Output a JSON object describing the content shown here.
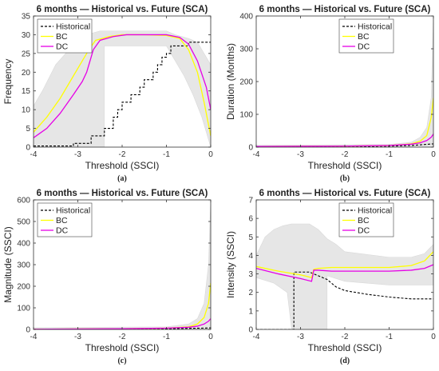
{
  "colors": {
    "historical": "#000000",
    "bc": "#ffff00",
    "dc": "#e600e6",
    "band": "#e6e6e6",
    "axis": "#333333"
  },
  "chart_data": [
    {
      "type": "line",
      "panel_label": "(a)",
      "title": "6 months — Historical vs. Future (SCA)",
      "xlabel": "Threshold (SSCI)",
      "ylabel": "Frequency",
      "xlim": [
        -4,
        0
      ],
      "ylim": [
        0,
        35
      ],
      "xticks": [
        -4,
        -3,
        -2,
        -1,
        0
      ],
      "yticks": [
        0,
        5,
        10,
        15,
        20,
        25,
        30,
        35
      ],
      "legend": {
        "position": "top-left",
        "entries": [
          "Historical",
          "BC",
          "DC"
        ]
      },
      "series": [
        {
          "name": "Historical",
          "style": "dashed",
          "step": true,
          "points": [
            [
              -4,
              0.3
            ],
            [
              -3.3,
              0.3
            ],
            [
              -3.1,
              1.0
            ],
            [
              -2.8,
              1.0
            ],
            [
              -2.7,
              3
            ],
            [
              -2.5,
              3
            ],
            [
              -2.4,
              5
            ],
            [
              -2.3,
              5
            ],
            [
              -2.2,
              8
            ],
            [
              -2.1,
              10
            ],
            [
              -2.0,
              12
            ],
            [
              -1.8,
              14
            ],
            [
              -1.6,
              16
            ],
            [
              -1.5,
              18
            ],
            [
              -1.3,
              20
            ],
            [
              -1.2,
              22
            ],
            [
              -1.1,
              24
            ],
            [
              -1.0,
              25
            ],
            [
              -0.9,
              27
            ],
            [
              -0.6,
              27
            ],
            [
              -0.5,
              28
            ],
            [
              0,
              28
            ]
          ]
        },
        {
          "name": "BC",
          "points": [
            [
              -4,
              4
            ],
            [
              -3.7,
              8
            ],
            [
              -3.4,
              13
            ],
            [
              -3.1,
              19
            ],
            [
              -2.9,
              23
            ],
            [
              -2.75,
              26
            ],
            [
              -2.6,
              28.5
            ],
            [
              -2.3,
              29.5
            ],
            [
              -2.0,
              30
            ],
            [
              -1.5,
              30
            ],
            [
              -1.0,
              29.8
            ],
            [
              -0.7,
              29
            ],
            [
              -0.5,
              26
            ],
            [
              -0.3,
              20
            ],
            [
              -0.15,
              12
            ],
            [
              0,
              3
            ]
          ]
        },
        {
          "name": "DC",
          "points": [
            [
              -4,
              2.5
            ],
            [
              -3.7,
              5
            ],
            [
              -3.4,
              9
            ],
            [
              -3.1,
              14
            ],
            [
              -2.9,
              17.5
            ],
            [
              -2.8,
              20
            ],
            [
              -2.65,
              26
            ],
            [
              -2.5,
              28.5
            ],
            [
              -2.2,
              29.5
            ],
            [
              -1.9,
              30
            ],
            [
              -1.5,
              30
            ],
            [
              -1.0,
              30
            ],
            [
              -0.7,
              29.3
            ],
            [
              -0.5,
              27.5
            ],
            [
              -0.3,
              23
            ],
            [
              -0.1,
              16
            ],
            [
              0,
              10
            ]
          ]
        }
      ],
      "band": {
        "upper": [
          [
            -4,
            11
          ],
          [
            -3.8,
            15
          ],
          [
            -3.5,
            22
          ],
          [
            -3.2,
            26
          ],
          [
            -3.0,
            28
          ],
          [
            -2.8,
            30
          ],
          [
            -2.5,
            31
          ],
          [
            -2.0,
            31
          ],
          [
            -1.0,
            31
          ],
          [
            -0.8,
            30
          ],
          [
            -0.5,
            29
          ],
          [
            -0.3,
            28
          ],
          [
            -0.1,
            24
          ],
          [
            0,
            22
          ]
        ],
        "lower": [
          [
            -4,
            0
          ],
          [
            -2.4,
            0
          ],
          [
            -2.4,
            27
          ],
          [
            -1.0,
            27
          ],
          [
            -0.8,
            23
          ],
          [
            -0.6,
            19
          ],
          [
            -0.4,
            14
          ],
          [
            -0.2,
            8
          ],
          [
            0,
            0
          ]
        ]
      }
    },
    {
      "type": "line",
      "panel_label": "(b)",
      "title": "6 months — Historical vs. Future (SCA)",
      "xlabel": "Threshold (SSCI)",
      "ylabel": "Duration (Months)",
      "xlim": [
        -4,
        0
      ],
      "ylim": [
        0,
        400
      ],
      "xticks": [
        -4,
        -3,
        -2,
        -1,
        0
      ],
      "yticks": [
        0,
        100,
        200,
        300,
        400
      ],
      "legend": {
        "position": "top-right",
        "entries": [
          "Historical",
          "BC",
          "DC"
        ]
      },
      "series": [
        {
          "name": "Historical",
          "style": "dashed",
          "points": [
            [
              -4,
              2
            ],
            [
              -2,
              2
            ],
            [
              -1,
              3
            ],
            [
              -0.5,
              5
            ],
            [
              -0.2,
              8
            ],
            [
              0,
              10
            ]
          ]
        },
        {
          "name": "BC",
          "points": [
            [
              -4,
              2
            ],
            [
              -2,
              3
            ],
            [
              -1,
              5
            ],
            [
              -0.5,
              10
            ],
            [
              -0.3,
              18
            ],
            [
              -0.15,
              35
            ],
            [
              -0.05,
              90
            ],
            [
              0,
              150
            ]
          ]
        },
        {
          "name": "DC",
          "points": [
            [
              -4,
              2
            ],
            [
              -2,
              3
            ],
            [
              -1,
              5
            ],
            [
              -0.5,
              9
            ],
            [
              -0.3,
              13
            ],
            [
              -0.15,
              20
            ],
            [
              -0.05,
              30
            ],
            [
              0,
              40
            ]
          ]
        }
      ],
      "band": {
        "upper": [
          [
            -4,
            6
          ],
          [
            -1,
            8
          ],
          [
            -0.5,
            15
          ],
          [
            -0.3,
            30
          ],
          [
            -0.15,
            60
          ],
          [
            -0.05,
            150
          ],
          [
            0,
            400
          ]
        ],
        "lower": [
          [
            -4,
            0
          ],
          [
            0,
            0
          ]
        ]
      }
    },
    {
      "type": "line",
      "panel_label": "(c)",
      "title": "6 months — Historical vs. Future (SCA)",
      "xlabel": "Threshold (SSCI)",
      "ylabel": "Magnitude (SSCI)",
      "xlim": [
        -4,
        0
      ],
      "ylim": [
        0,
        600
      ],
      "xticks": [
        -4,
        -3,
        -2,
        -1,
        0
      ],
      "yticks": [
        0,
        100,
        200,
        300,
        400,
        500,
        600
      ],
      "legend": {
        "position": "top-left",
        "entries": [
          "Historical",
          "BC",
          "DC"
        ]
      },
      "series": [
        {
          "name": "Historical",
          "style": "dashed",
          "points": [
            [
              -4,
              1
            ],
            [
              -2,
              2
            ],
            [
              -1,
              3
            ],
            [
              -0.5,
              5
            ],
            [
              -0.2,
              6
            ],
            [
              0,
              7
            ]
          ]
        },
        {
          "name": "BC",
          "points": [
            [
              -4,
              1
            ],
            [
              -2,
              3
            ],
            [
              -1,
              6
            ],
            [
              -0.5,
              12
            ],
            [
              -0.3,
              25
            ],
            [
              -0.15,
              55
            ],
            [
              -0.05,
              120
            ],
            [
              0,
              215
            ]
          ]
        },
        {
          "name": "DC",
          "points": [
            [
              -4,
              1
            ],
            [
              -2,
              3
            ],
            [
              -1,
              6
            ],
            [
              -0.5,
              10
            ],
            [
              -0.3,
              15
            ],
            [
              -0.15,
              25
            ],
            [
              -0.05,
              38
            ],
            [
              0,
              50
            ]
          ]
        }
      ],
      "band": {
        "upper": [
          [
            -4,
            8
          ],
          [
            -1,
            12
          ],
          [
            -0.5,
            25
          ],
          [
            -0.3,
            50
          ],
          [
            -0.15,
            120
          ],
          [
            -0.05,
            300
          ],
          [
            0,
            600
          ]
        ],
        "lower": [
          [
            -4,
            0
          ],
          [
            0,
            0
          ]
        ]
      }
    },
    {
      "type": "line",
      "panel_label": "(d)",
      "title": "6 months — Historical vs. Future (SCA)",
      "xlabel": "Threshold (SSCI)",
      "ylabel": "Intensity (SSCI)",
      "xlim": [
        -4,
        0
      ],
      "ylim": [
        0,
        7
      ],
      "xticks": [
        -4,
        -3,
        -2,
        -1,
        0
      ],
      "yticks": [
        0,
        1,
        2,
        3,
        4,
        5,
        6,
        7
      ],
      "legend": {
        "position": "top-right",
        "entries": [
          "Historical",
          "BC",
          "DC"
        ]
      },
      "series": [
        {
          "name": "Historical",
          "style": "dashed",
          "points": [
            [
              -4,
              0
            ],
            [
              -3.15,
              0
            ],
            [
              -3.15,
              3.1
            ],
            [
              -2.8,
              3.1
            ],
            [
              -2.6,
              2.9
            ],
            [
              -2.4,
              2.7
            ],
            [
              -2.2,
              2.3
            ],
            [
              -2.0,
              2.1
            ],
            [
              -1.5,
              1.9
            ],
            [
              -1.0,
              1.75
            ],
            [
              -0.5,
              1.65
            ],
            [
              0,
              1.65
            ]
          ]
        },
        {
          "name": "BC",
          "points": [
            [
              -4,
              3.4
            ],
            [
              -3.5,
              3.15
            ],
            [
              -3.0,
              2.95
            ],
            [
              -2.75,
              2.8
            ],
            [
              -2.7,
              3.25
            ],
            [
              -2.6,
              3.3
            ],
            [
              -2.3,
              3.35
            ],
            [
              -1.5,
              3.35
            ],
            [
              -1.0,
              3.35
            ],
            [
              -0.5,
              3.45
            ],
            [
              -0.2,
              3.7
            ],
            [
              0,
              4.2
            ]
          ]
        },
        {
          "name": "DC",
          "points": [
            [
              -4,
              3.3
            ],
            [
              -3.5,
              3.0
            ],
            [
              -3.0,
              2.75
            ],
            [
              -2.75,
              2.6
            ],
            [
              -2.7,
              3.2
            ],
            [
              -2.6,
              3.2
            ],
            [
              -2.3,
              3.15
            ],
            [
              -1.5,
              3.15
            ],
            [
              -1.0,
              3.15
            ],
            [
              -0.5,
              3.2
            ],
            [
              -0.2,
              3.3
            ],
            [
              0,
              3.5
            ]
          ]
        }
      ],
      "band": {
        "upper": [
          [
            -4,
            4
          ],
          [
            -3.9,
            4.5
          ],
          [
            -3.8,
            5
          ],
          [
            -3.6,
            5.4
          ],
          [
            -3.4,
            5.6
          ],
          [
            -3.2,
            5.7
          ],
          [
            -2.8,
            5.7
          ],
          [
            -2.6,
            5.4
          ],
          [
            -2.4,
            4.9
          ],
          [
            -2.2,
            4.6
          ],
          [
            -2.0,
            4.2
          ],
          [
            -1.0,
            3.9
          ],
          [
            -0.5,
            3.9
          ],
          [
            -0.2,
            4.1
          ],
          [
            0,
            4.6
          ]
        ],
        "lower": [
          [
            -4,
            2.8
          ],
          [
            -3.6,
            2.5
          ],
          [
            -3.3,
            2.0
          ],
          [
            -3.2,
            0
          ],
          [
            -2.4,
            0
          ],
          [
            -2.4,
            2.9
          ],
          [
            -2.0,
            2.6
          ],
          [
            -1.0,
            2.4
          ],
          [
            0,
            2.4
          ]
        ]
      }
    }
  ]
}
